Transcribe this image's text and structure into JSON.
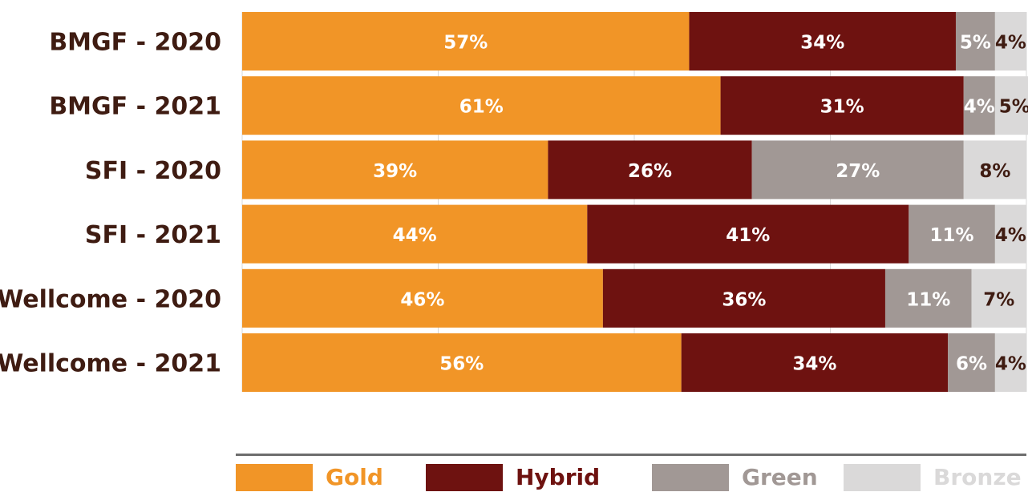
{
  "chart_data": {
    "type": "bar",
    "orientation": "horizontal",
    "stacked": true,
    "percent": true,
    "categories": [
      "BMGF - 2020",
      "BMGF - 2021",
      "SFI - 2020",
      "SFI - 2021",
      "Wellcome - 2020",
      "Wellcome - 2021"
    ],
    "series": [
      {
        "name": "Gold",
        "color": "#f19527",
        "label_color": "#ffffff",
        "values": [
          57,
          61,
          39,
          44,
          46,
          56
        ]
      },
      {
        "name": "Hybrid",
        "color": "#6e1210",
        "label_color": "#ffffff",
        "values": [
          34,
          31,
          26,
          41,
          36,
          34
        ]
      },
      {
        "name": "Green",
        "color": "#a19895",
        "label_color": "#ffffff",
        "values": [
          5,
          4,
          27,
          11,
          11,
          6
        ]
      },
      {
        "name": "Bronze",
        "color": "#dad9d9",
        "label_color": "#3f1c12",
        "values": [
          4,
          5,
          8,
          4,
          7,
          4
        ]
      }
    ],
    "data_labels": [
      [
        "57%",
        "34%",
        "5%",
        "4%"
      ],
      [
        "61%",
        "31%",
        "4%",
        "5%"
      ],
      [
        "39%",
        "26%",
        "27%",
        "8%"
      ],
      [
        "44%",
        "41%",
        "11%",
        "4%"
      ],
      [
        "46%",
        "36%",
        "11%",
        "7%"
      ],
      [
        "56%",
        "34%",
        "6%",
        "4%"
      ]
    ],
    "xlim": [
      0,
      100
    ],
    "grid": true,
    "legend": "bottom",
    "category_label_color": "#3f1c12"
  }
}
